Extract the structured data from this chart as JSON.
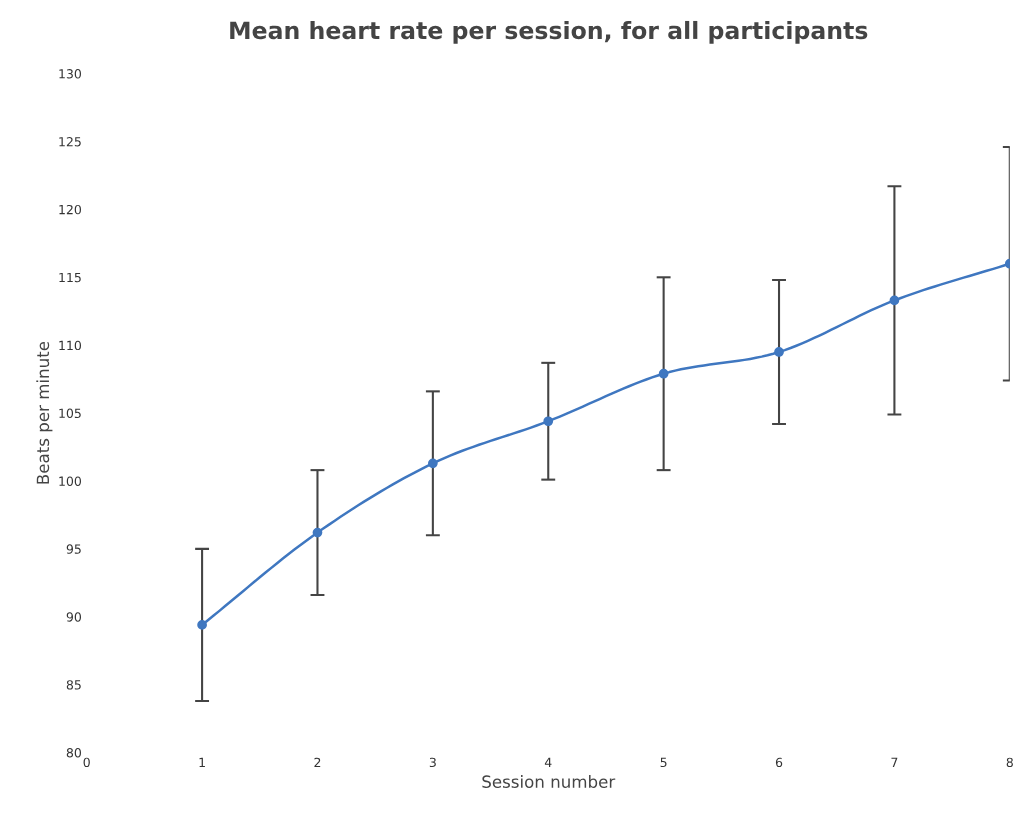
{
  "chart_data": {
    "type": "line",
    "title": "Mean heart rate per session, for all participants",
    "xlabel": "Session number",
    "ylabel": "Beats per minute",
    "x": [
      1,
      2,
      3,
      4,
      5,
      6,
      7,
      8
    ],
    "series": [
      {
        "color": "#3f77c0",
        "values": [
          89.4,
          96.2,
          101.3,
          104.4,
          107.9,
          109.5,
          113.3,
          116.0
        ],
        "errors": [
          5.6,
          4.6,
          5.3,
          4.3,
          7.1,
          5.3,
          8.4,
          8.6
        ]
      }
    ],
    "xlim": [
      0,
      8
    ],
    "xticks": [
      0,
      1,
      2,
      3,
      4,
      5,
      6,
      7,
      8
    ],
    "ylim": [
      80,
      130
    ],
    "yticks": [
      80,
      85,
      90,
      95,
      100,
      105,
      110,
      115,
      120,
      125,
      130
    ],
    "marker": "circle",
    "line_style": "solid",
    "grid": false,
    "legend": false
  }
}
